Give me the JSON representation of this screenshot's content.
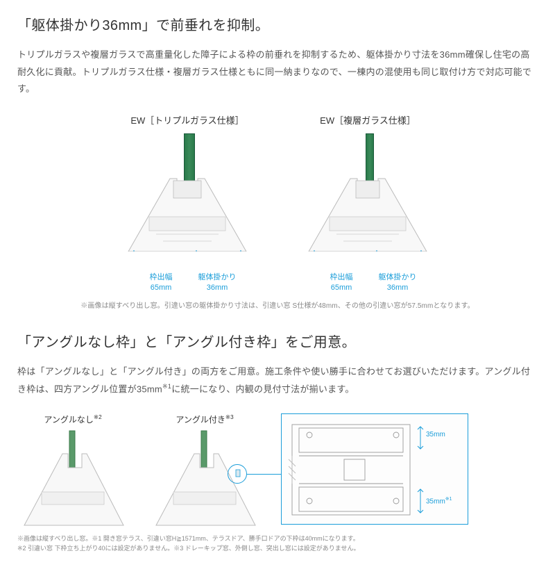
{
  "section1": {
    "heading": "「躯体掛かり36mm」で前垂れを抑制。",
    "body": "トリプルガラスや複層ガラスで高重量化した障子による枠の前垂れを抑制するため、躯体掛かり寸法を36mm確保し住宅の高耐久化に貢献。トリプルガラス仕様・複層ガラス仕様ともに同一納まりなので、一棟内の混使用も同じ取付け方で対応可能です。",
    "figures": [
      {
        "title": "EW［トリプルガラス仕様］",
        "dims": [
          {
            "label": "枠出幅",
            "value": "65mm"
          },
          {
            "label": "躯体掛かり",
            "value": "36mm"
          }
        ]
      },
      {
        "title": "EW［複層ガラス仕様］",
        "dims": [
          {
            "label": "枠出幅",
            "value": "65mm"
          },
          {
            "label": "躯体掛かり",
            "value": "36mm"
          }
        ]
      }
    ],
    "note": "※画像は縦すべり出し窓。引違い窓の躯体掛かり寸法は、引違い窓 S仕様が48mm、その他の引違い窓が57.5mmとなります。"
  },
  "section2": {
    "heading": "「アングルなし枠」と「アングル付き枠」をご用意。",
    "body_html": "枠は「アングルなし」と「アングル付き」の両方をご用意。施工条件や使い勝手に合わせてお選びいただけます。アングル付き枠は、四方アングル位置が35mm<sup>※1</sup>に統一になり、内観の見付寸法が揃います。",
    "figures": [
      {
        "title_html": "アングルなし<sup>※2</sup>"
      },
      {
        "title_html": "アングル付き<sup>※3</sup>"
      }
    ],
    "tech_dims": {
      "top": "35mm",
      "bottom_html": "35mm<sup>※1</sup>"
    },
    "footnote": "※画像は縦すべり出し窓。※1 開き窓テラス、引違い窓H≧1571mm、テラスドア、勝手口ドアの下枠は40mmになります。\n※2 引違い窓 下枠立ち上がり40には設定がありません。※3 ドレーキップ窓、外倒し窓、突出し窓には設定がありません。",
    "colors": {
      "accent": "#1a9dd9",
      "text": "#333333",
      "muted": "#888888",
      "frame_fill": "#f5f5f5",
      "frame_stroke": "#cccccc"
    }
  }
}
